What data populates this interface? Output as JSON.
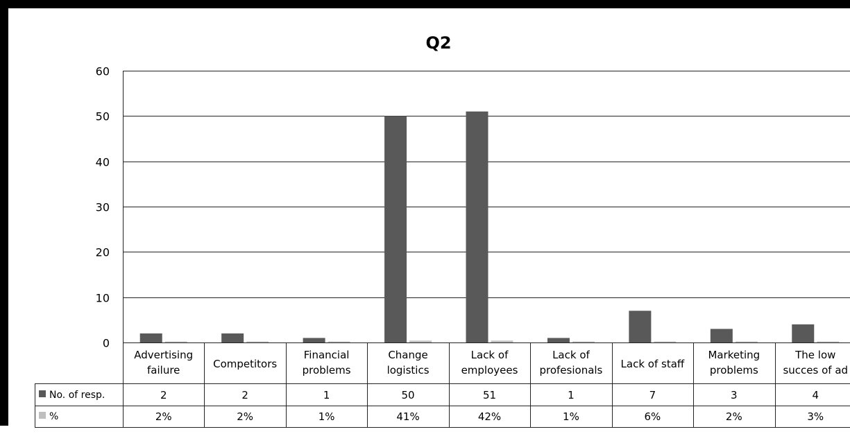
{
  "chart_data": {
    "type": "bar",
    "title": "Q2",
    "categories": [
      [
        "Advertising",
        "failure"
      ],
      [
        "Competitors"
      ],
      [
        "Financial",
        "problems"
      ],
      [
        "Change",
        "logistics"
      ],
      [
        "Lack of",
        "employees"
      ],
      [
        "Lack of",
        "profesionals"
      ],
      [
        "Lack of staff"
      ],
      [
        "Marketing",
        "problems"
      ],
      [
        "The low",
        "succes of ad"
      ]
    ],
    "ylim": [
      0,
      60
    ],
    "yticks": [
      0,
      10,
      20,
      30,
      40,
      50,
      60
    ],
    "grid": true,
    "legend": "table-below",
    "series": [
      {
        "name": "No. of resp.",
        "color": "#595959",
        "values": [
          2,
          2,
          1,
          50,
          51,
          1,
          7,
          3,
          4
        ],
        "labels": [
          "2",
          "2",
          "1",
          "50",
          "51",
          "1",
          "7",
          "3",
          "4"
        ]
      },
      {
        "name": "%",
        "color": "#bfbfbf",
        "values": [
          0.02,
          0.02,
          0.01,
          0.41,
          0.42,
          0.01,
          0.06,
          0.02,
          0.03
        ],
        "labels": [
          "2%",
          "2%",
          "1%",
          "41%",
          "42%",
          "1%",
          "6%",
          "2%",
          "3%"
        ]
      }
    ]
  }
}
